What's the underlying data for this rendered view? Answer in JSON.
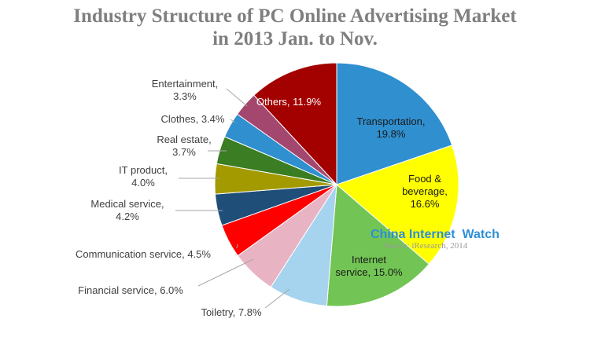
{
  "chart_data": {
    "type": "pie",
    "title": "Industry Structure of PC Online Advertising Market in 2013 Jan. to Nov.",
    "title_lines": [
      "Industry Structure of PC Online Advertising Market",
      "in 2013 Jan. to Nov."
    ],
    "unit": "%",
    "slices": [
      {
        "label": "Transportation, 19.8%",
        "value": 19.8,
        "color": "#2f8fcf"
      },
      {
        "label": "Food & beverage, 16.6%",
        "value": 16.6,
        "color": "#ffff00"
      },
      {
        "label": "Internet service, 15.0%",
        "value": 15.0,
        "color": "#72c554"
      },
      {
        "label": "Toiletry, 7.8%",
        "value": 7.8,
        "color": "#a6d3ee"
      },
      {
        "label": "Financial service, 6.0%",
        "value": 6.0,
        "color": "#e8b4c4"
      },
      {
        "label": "Communication service, 4.5%",
        "value": 4.5,
        "color": "#ff0000"
      },
      {
        "label": "Medical service, 4.2%",
        "value": 4.2,
        "color": "#1f4e79"
      },
      {
        "label": "IT product, 4.0%",
        "value": 4.0,
        "color": "#a39a00"
      },
      {
        "label": "Real estate, 3.7%",
        "value": 3.7,
        "color": "#3a7d22"
      },
      {
        "label": "Clothes, 3.4%",
        "value": 3.4,
        "color": "#2f8fcf"
      },
      {
        "label": "Entertainment, 3.3%",
        "value": 3.3,
        "color": "#a3476e"
      },
      {
        "label": "Others, 11.9%",
        "value": 11.9,
        "color": "#a30000"
      }
    ]
  },
  "watermark": {
    "text": "China Internet  Watch",
    "source": "Source: iResearch, 2014"
  }
}
